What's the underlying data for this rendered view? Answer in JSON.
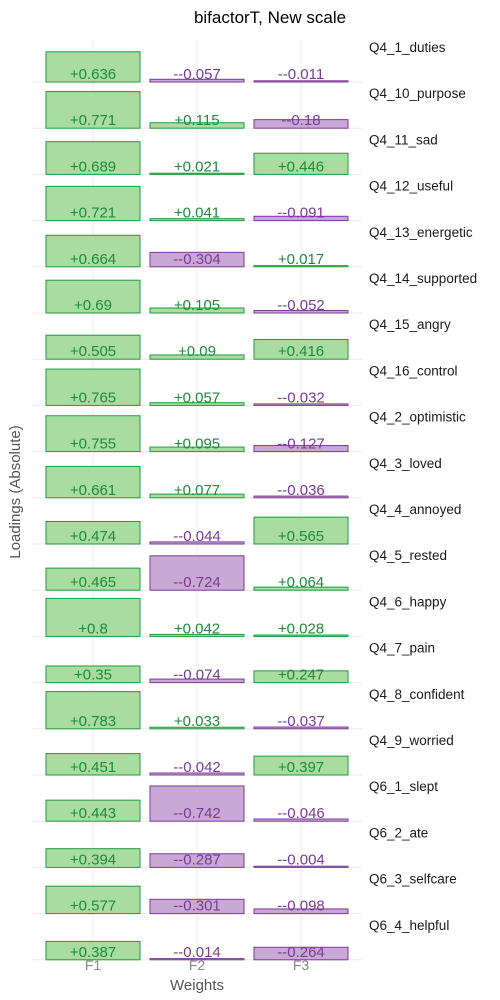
{
  "chart_data": {
    "type": "bar",
    "title": "bifactorT, New scale",
    "xlabel": "Weights",
    "ylabel": "Loadings (Absolute)",
    "categories": [
      "F1",
      "F2",
      "F3"
    ],
    "ylim": [
      0,
      0.8
    ],
    "grid": true,
    "legend": "none",
    "colors": {
      "positive_fill": "#a8dca0",
      "positive_stroke": "#1f9a40",
      "positive_text": "#1f8a3a",
      "negative_fill": "#c9a8d6",
      "negative_stroke": "#7b3a94",
      "negative_text": "#7b3a94"
    },
    "facets": [
      {
        "name": "Q4_1_duties",
        "values": [
          0.636,
          -0.057,
          -0.011
        ],
        "labels": [
          "+0.636",
          "--0.057",
          "--0.011"
        ]
      },
      {
        "name": "Q4_10_purpose",
        "values": [
          0.771,
          0.115,
          -0.18
        ],
        "labels": [
          "+0.771",
          "+0.115",
          "--0.18"
        ]
      },
      {
        "name": "Q4_11_sad",
        "values": [
          0.689,
          0.021,
          0.446
        ],
        "labels": [
          "+0.689",
          "+0.021",
          "+0.446"
        ]
      },
      {
        "name": "Q4_12_useful",
        "values": [
          0.721,
          0.041,
          -0.091
        ],
        "labels": [
          "+0.721",
          "+0.041",
          "--0.091"
        ]
      },
      {
        "name": "Q4_13_energetic",
        "values": [
          0.664,
          -0.304,
          0.017
        ],
        "labels": [
          "+0.664",
          "--0.304",
          "+0.017"
        ]
      },
      {
        "name": "Q4_14_supported",
        "values": [
          0.69,
          0.105,
          -0.052
        ],
        "labels": [
          "+0.69",
          "+0.105",
          "--0.052"
        ]
      },
      {
        "name": "Q4_15_angry",
        "values": [
          0.505,
          0.09,
          0.416
        ],
        "labels": [
          "+0.505",
          "+0.09",
          "+0.416"
        ]
      },
      {
        "name": "Q4_16_control",
        "values": [
          0.765,
          0.057,
          -0.032
        ],
        "labels": [
          "+0.765",
          "+0.057",
          "--0.032"
        ]
      },
      {
        "name": "Q4_2_optimistic",
        "values": [
          0.755,
          0.095,
          -0.127
        ],
        "labels": [
          "+0.755",
          "+0.095",
          "--0.127"
        ]
      },
      {
        "name": "Q4_3_loved",
        "values": [
          0.661,
          0.077,
          -0.036
        ],
        "labels": [
          "+0.661",
          "+0.077",
          "--0.036"
        ]
      },
      {
        "name": "Q4_4_annoyed",
        "values": [
          0.474,
          -0.044,
          0.565
        ],
        "labels": [
          "+0.474",
          "--0.044",
          "+0.565"
        ]
      },
      {
        "name": "Q4_5_rested",
        "values": [
          0.465,
          -0.724,
          0.064
        ],
        "labels": [
          "+0.465",
          "--0.724",
          "+0.064"
        ]
      },
      {
        "name": "Q4_6_happy",
        "values": [
          0.8,
          0.042,
          0.028
        ],
        "labels": [
          "+0.8",
          "+0.042",
          "+0.028"
        ]
      },
      {
        "name": "Q4_7_pain",
        "values": [
          0.35,
          -0.074,
          0.247
        ],
        "labels": [
          "+0.35",
          "--0.074",
          "+0.247"
        ]
      },
      {
        "name": "Q4_8_confident",
        "values": [
          0.783,
          0.033,
          -0.037
        ],
        "labels": [
          "+0.783",
          "+0.033",
          "--0.037"
        ]
      },
      {
        "name": "Q4_9_worried",
        "values": [
          0.451,
          -0.042,
          0.397
        ],
        "labels": [
          "+0.451",
          "--0.042",
          "+0.397"
        ]
      },
      {
        "name": "Q6_1_slept",
        "values": [
          0.443,
          -0.742,
          -0.046
        ],
        "labels": [
          "+0.443",
          "--0.742",
          "--0.046"
        ]
      },
      {
        "name": "Q6_2_ate",
        "values": [
          0.394,
          -0.287,
          -0.004
        ],
        "labels": [
          "+0.394",
          "--0.287",
          "--0.004"
        ]
      },
      {
        "name": "Q6_3_selfcare",
        "values": [
          0.577,
          -0.301,
          -0.098
        ],
        "labels": [
          "+0.577",
          "--0.301",
          "--0.098"
        ]
      },
      {
        "name": "Q6_4_helpful",
        "values": [
          0.387,
          -0.014,
          -0.264
        ],
        "labels": [
          "+0.387",
          "--0.014",
          "--0.264"
        ]
      }
    ]
  }
}
